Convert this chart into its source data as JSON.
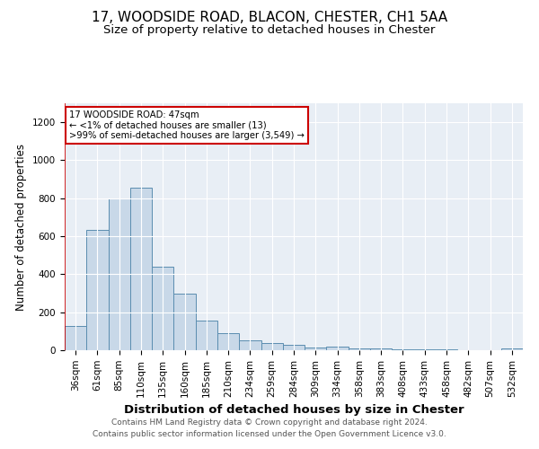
{
  "title1": "17, WOODSIDE ROAD, BLACON, CHESTER, CH1 5AA",
  "title2": "Size of property relative to detached houses in Chester",
  "xlabel": "Distribution of detached houses by size in Chester",
  "ylabel": "Number of detached properties",
  "categories": [
    "36sqm",
    "61sqm",
    "85sqm",
    "110sqm",
    "135sqm",
    "160sqm",
    "185sqm",
    "210sqm",
    "234sqm",
    "259sqm",
    "284sqm",
    "309sqm",
    "334sqm",
    "358sqm",
    "383sqm",
    "408sqm",
    "433sqm",
    "458sqm",
    "482sqm",
    "507sqm",
    "532sqm"
  ],
  "values": [
    130,
    635,
    800,
    855,
    440,
    300,
    155,
    90,
    50,
    40,
    30,
    15,
    20,
    10,
    8,
    5,
    5,
    5,
    2,
    2,
    10
  ],
  "bar_color": "#c8d8e8",
  "bar_edge_color": "#5b8db0",
  "annotation_box_text": "17 WOODSIDE ROAD: 47sqm\n← <1% of detached houses are smaller (13)\n>99% of semi-detached houses are larger (3,549) →",
  "annotation_box_color": "#ffffff",
  "annotation_box_edge_color": "#cc0000",
  "vline_color": "#cc0000",
  "ylim": [
    0,
    1300
  ],
  "yticks": [
    0,
    200,
    400,
    600,
    800,
    1000,
    1200
  ],
  "background_color": "#e8eef5",
  "footer1": "Contains HM Land Registry data © Crown copyright and database right 2024.",
  "footer2": "Contains public sector information licensed under the Open Government Licence v3.0.",
  "title1_fontsize": 11,
  "title2_fontsize": 9.5,
  "xlabel_fontsize": 9.5,
  "ylabel_fontsize": 8.5,
  "tick_fontsize": 7.5,
  "footer_fontsize": 6.5
}
